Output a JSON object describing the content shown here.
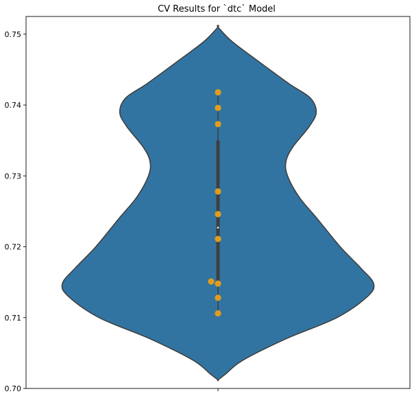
{
  "chart_data": {
    "type": "violin",
    "title": "CV Results for `dtc` Model",
    "xlabel": "",
    "ylabel": "",
    "ylim": [
      0.7,
      0.7525
    ],
    "yticks": [
      0.7,
      0.71,
      0.72,
      0.73,
      0.74,
      0.75
    ],
    "ytick_labels": [
      "0.70",
      "0.71",
      "0.72",
      "0.73",
      "0.74",
      "0.75"
    ],
    "grid": false,
    "legend": "none",
    "colors": {
      "violin_fill": "#3274a1",
      "violin_edge": "#3f3f3f",
      "box": "#3f3f3f",
      "median": "#ffffff",
      "points": "#e09c1c",
      "axes": "#000000"
    },
    "box": {
      "q1": 0.7148,
      "median": 0.7227,
      "q3": 0.735,
      "whisker_low": 0.7105,
      "whisker_high": 0.7418
    },
    "density": [
      {
        "y": 0.7012,
        "w": 0.0
      },
      {
        "y": 0.702,
        "w": 0.045
      },
      {
        "y": 0.704,
        "w": 0.155
      },
      {
        "y": 0.707,
        "w": 0.42
      },
      {
        "y": 0.71,
        "w": 0.735
      },
      {
        "y": 0.713,
        "w": 0.925
      },
      {
        "y": 0.7148,
        "w": 0.962
      },
      {
        "y": 0.717,
        "w": 0.882
      },
      {
        "y": 0.72,
        "w": 0.755
      },
      {
        "y": 0.724,
        "w": 0.612
      },
      {
        "y": 0.727,
        "w": 0.502
      },
      {
        "y": 0.73,
        "w": 0.43
      },
      {
        "y": 0.732,
        "w": 0.42
      },
      {
        "y": 0.734,
        "w": 0.46
      },
      {
        "y": 0.737,
        "w": 0.565
      },
      {
        "y": 0.739,
        "w": 0.607
      },
      {
        "y": 0.741,
        "w": 0.57
      },
      {
        "y": 0.743,
        "w": 0.44
      },
      {
        "y": 0.746,
        "w": 0.26
      },
      {
        "y": 0.749,
        "w": 0.085
      },
      {
        "y": 0.751,
        "w": 0.0
      }
    ],
    "points": [
      {
        "value": 0.7418,
        "jitter": 0
      },
      {
        "value": 0.7396,
        "jitter": 0
      },
      {
        "value": 0.7373,
        "jitter": 0
      },
      {
        "value": 0.7278,
        "jitter": 0
      },
      {
        "value": 0.7246,
        "jitter": 0
      },
      {
        "value": 0.7211,
        "jitter": 0
      },
      {
        "value": 0.7151,
        "jitter": -1
      },
      {
        "value": 0.7148,
        "jitter": 0
      },
      {
        "value": 0.7128,
        "jitter": 0
      },
      {
        "value": 0.7106,
        "jitter": 0
      }
    ]
  }
}
